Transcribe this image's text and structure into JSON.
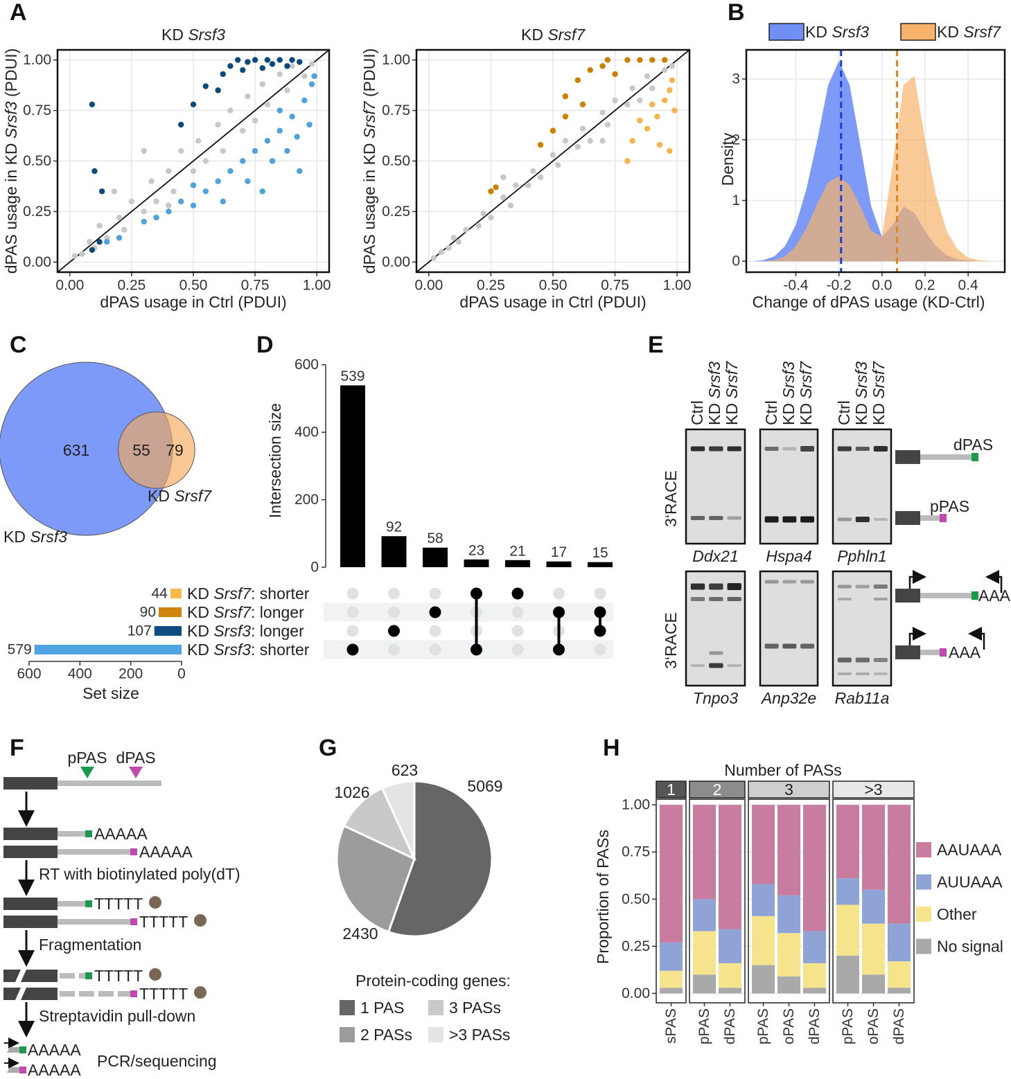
{
  "panel_labels": [
    "A",
    "B",
    "C",
    "D",
    "E",
    "F",
    "G",
    "H"
  ],
  "chart_data": [
    {
      "type": "scatter",
      "title": "KD Srsf3",
      "xlabel": "dPAS usage in Ctrl (PDUI)",
      "ylabel": "dPAS usage in KD Srsf3 (PDUI)",
      "xlim": [
        -0.05,
        1.05
      ],
      "ylim": [
        -0.05,
        1.05
      ],
      "xticks": [
        {
          "value": 0,
          "label": "0.00"
        },
        0.25,
        {
          "value": 0.5,
          "label": "0.50"
        },
        0.75,
        {
          "value": 1,
          "label": "1.00"
        }
      ],
      "yticks": [
        {
          "value": 0,
          "label": "0.00"
        },
        0.25,
        {
          "value": 0.5,
          "label": "0.50"
        },
        0.75,
        {
          "value": 1,
          "label": "1.00"
        }
      ],
      "grid": true,
      "diagonal": true,
      "series": [
        {
          "color": "#c8c8c8",
          "x": [
            0.02,
            0.05,
            0.08,
            0.1,
            0.12,
            0.15,
            0.2,
            0.22,
            0.25,
            0.3,
            0.33,
            0.35,
            0.4,
            0.42,
            0.45,
            0.5,
            0.52,
            0.55,
            0.6,
            0.62,
            0.65,
            0.7,
            0.72,
            0.75,
            0.78,
            0.8,
            0.85,
            0.88,
            0.9,
            0.95,
            0.98,
            0.18,
            0.3,
            0.6,
            0.4
          ],
          "y": [
            0.03,
            0.04,
            0.1,
            0.07,
            0.18,
            0.12,
            0.22,
            0.16,
            0.3,
            0.25,
            0.4,
            0.3,
            0.45,
            0.35,
            0.55,
            0.45,
            0.6,
            0.5,
            0.68,
            0.55,
            0.75,
            0.65,
            0.82,
            0.7,
            0.88,
            0.78,
            0.93,
            0.85,
            0.97,
            0.92,
            0.98,
            0.35,
            0.55,
            0.85,
            0.28
          ]
        },
        {
          "color": "#4ea2de",
          "x": [
            0.15,
            0.2,
            0.3,
            0.35,
            0.4,
            0.45,
            0.5,
            0.5,
            0.55,
            0.6,
            0.62,
            0.65,
            0.7,
            0.72,
            0.75,
            0.8,
            0.82,
            0.85,
            0.88,
            0.9,
            0.92,
            0.95,
            0.97,
            0.98,
            0.93,
            0.78,
            0.85,
            0.99
          ],
          "y": [
            0.1,
            0.12,
            0.2,
            0.22,
            0.25,
            0.3,
            0.28,
            0.38,
            0.35,
            0.4,
            0.3,
            0.45,
            0.5,
            0.4,
            0.55,
            0.6,
            0.5,
            0.65,
            0.55,
            0.72,
            0.62,
            0.8,
            0.68,
            0.88,
            0.45,
            0.35,
            0.75,
            0.92
          ]
        },
        {
          "color": "#0c4a7c",
          "x": [
            0.09,
            0.1,
            0.12,
            0.09,
            0.13,
            0.55,
            0.6,
            0.62,
            0.65,
            0.68,
            0.7,
            0.72,
            0.75,
            0.78,
            0.8,
            0.82,
            0.85,
            0.88,
            0.9,
            0.93,
            0.5,
            0.45
          ],
          "y": [
            0.78,
            0.45,
            0.1,
            0.06,
            0.35,
            0.87,
            0.85,
            0.93,
            0.97,
            1.0,
            0.95,
            0.99,
            1.0,
            0.96,
            1.0,
            0.98,
            1.0,
            0.97,
            1.0,
            0.99,
            0.78,
            0.68
          ]
        }
      ]
    },
    {
      "type": "scatter",
      "title": "KD Srsf7",
      "xlabel": "dPAS usage in Ctrl (PDUI)",
      "ylabel": "dPAS usage in KD Srsf7 (PDUI)",
      "xlim": [
        -0.05,
        1.05
      ],
      "ylim": [
        -0.05,
        1.05
      ],
      "xticks": [
        {
          "value": 0,
          "label": "0.00"
        },
        0.25,
        {
          "value": 0.5,
          "label": "0.50"
        },
        0.75,
        {
          "value": 1,
          "label": "1.00"
        }
      ],
      "yticks": [
        {
          "value": 0,
          "label": "0.00"
        },
        0.25,
        {
          "value": 0.5,
          "label": "0.50"
        },
        0.75,
        {
          "value": 1,
          "label": "1.00"
        }
      ],
      "grid": true,
      "diagonal": true,
      "series": [
        {
          "color": "#c8c8c8",
          "x": [
            0.02,
            0.05,
            0.08,
            0.1,
            0.12,
            0.15,
            0.2,
            0.22,
            0.25,
            0.3,
            0.33,
            0.35,
            0.4,
            0.42,
            0.45,
            0.5,
            0.52,
            0.55,
            0.6,
            0.62,
            0.65,
            0.7,
            0.72,
            0.75,
            0.8,
            0.82,
            0.85,
            0.88,
            0.9,
            0.95,
            0.98,
            0.3,
            0.5,
            0.7
          ],
          "y": [
            0.02,
            0.05,
            0.07,
            0.12,
            0.1,
            0.16,
            0.18,
            0.24,
            0.22,
            0.32,
            0.28,
            0.38,
            0.38,
            0.45,
            0.42,
            0.53,
            0.48,
            0.6,
            0.57,
            0.66,
            0.6,
            0.74,
            0.68,
            0.8,
            0.78,
            0.86,
            0.8,
            0.92,
            0.86,
            0.95,
            0.97,
            0.42,
            0.65,
            0.6
          ]
        },
        {
          "color": "#cc8000",
          "x": [
            0.25,
            0.27,
            0.45,
            0.5,
            0.55,
            0.6,
            0.62,
            0.65,
            0.7,
            0.72,
            0.75,
            0.8,
            0.85,
            0.9,
            0.95,
            0.55
          ],
          "y": [
            0.35,
            0.37,
            0.58,
            0.65,
            0.82,
            0.9,
            0.78,
            0.95,
            0.97,
            1.0,
            0.93,
            1.0,
            1.0,
            1.0,
            1.0,
            0.72
          ]
        },
        {
          "color": "#f7b44c",
          "x": [
            0.82,
            0.85,
            0.88,
            0.9,
            0.92,
            0.95,
            0.97,
            0.97,
            0.93,
            0.98,
            0.8,
            0.99
          ],
          "y": [
            0.6,
            0.7,
            0.66,
            0.78,
            0.72,
            0.8,
            0.85,
            0.55,
            0.58,
            0.9,
            0.5,
            0.75
          ]
        }
      ]
    },
    {
      "type": "density",
      "xlabel": "Change of dPAS usage (KD-Ctrl)",
      "ylabel": "Density",
      "xlim": [
        -0.63,
        0.57
      ],
      "ylim": [
        -0.18,
        3.48
      ],
      "xticks": [
        -0.4,
        -0.2,
        {
          "value": 0,
          "label": "0.0"
        },
        0.2,
        0.4
      ],
      "yticks": [
        0,
        1,
        2,
        3
      ],
      "grid": true,
      "legend": "top",
      "x": [
        -0.6,
        -0.55,
        -0.5,
        -0.45,
        -0.4,
        -0.35,
        -0.3,
        -0.25,
        -0.2,
        -0.15,
        -0.1,
        -0.05,
        0,
        0.05,
        0.1,
        0.15,
        0.2,
        0.25,
        0.3,
        0.35,
        0.4,
        0.45,
        0.5
      ],
      "series": [
        {
          "name": "KD Srsf3",
          "color": "#6f8ff5",
          "mean": -0.19,
          "mean_color": "#1a3fd8",
          "values": [
            0,
            0.02,
            0.08,
            0.25,
            0.6,
            1.2,
            2.0,
            2.9,
            3.3,
            2.9,
            1.9,
            0.9,
            0.4,
            0.6,
            0.9,
            0.8,
            0.5,
            0.25,
            0.1,
            0.03,
            0.01,
            0,
            0
          ]
        },
        {
          "name": "KD Srsf7",
          "color": "#f7b26b",
          "mean": 0.07,
          "mean_color": "#e0841a",
          "values": [
            0,
            0,
            0.02,
            0.08,
            0.25,
            0.55,
            0.95,
            1.3,
            1.4,
            1.25,
            0.9,
            0.5,
            0.4,
            1.6,
            2.9,
            3.05,
            2.0,
            1.1,
            0.5,
            0.2,
            0.06,
            0.02,
            0
          ]
        }
      ]
    },
    {
      "type": "venn",
      "values": [
        631,
        55,
        79
      ],
      "sets": [
        {
          "name": "KD Srsf3",
          "color": "#7d9af8"
        },
        {
          "name": "KD Srsf7",
          "color": "#f5a95a"
        }
      ]
    },
    {
      "type": "upset",
      "values": [
        539,
        92,
        58,
        23,
        21,
        17,
        15
      ],
      "color": "#000000",
      "ylim": [
        0,
        620
      ],
      "yticks": [
        0,
        200,
        400,
        600
      ],
      "ylabel": "Intersection size",
      "sets": [
        {
          "name": "KD Srsf7: shorter",
          "size": 44,
          "color": "#f6b84a"
        },
        {
          "name": "KD Srsf7: longer",
          "size": 90,
          "color": "#cf860f"
        },
        {
          "name": "KD Srsf3: longer",
          "size": 107,
          "color": "#0f4c81"
        },
        {
          "name": "KD Srsf3: shorter",
          "size": 579,
          "color": "#4fa3e0"
        }
      ],
      "membership": [
        [
          3
        ],
        [
          2
        ],
        [
          1
        ],
        [
          0,
          3
        ],
        [
          0
        ],
        [
          1,
          3
        ],
        [
          1,
          2
        ]
      ],
      "set_xlim": [
        600,
        0
      ],
      "set_xticks": [
        600,
        400,
        200,
        0
      ],
      "set_xlabel": "Set size"
    },
    {
      "type": "pie",
      "values": [
        5069,
        2430,
        1026,
        623
      ],
      "legend_title": "Protein-coding genes:",
      "names": [
        "1 PAS",
        "2 PASs",
        "3 PASs",
        ">3 PASs"
      ],
      "colors": [
        "#666666",
        "#9c9c9c",
        "#c9c9c9",
        "#e4e4e4"
      ]
    },
    {
      "type": "bar",
      "stacked": true,
      "facet_title": "Number of PASs",
      "ylabel": "Proportion of PASs",
      "ylim": [
        -0.05,
        1.03
      ],
      "yticks": [
        {
          "value": 0,
          "label": "0.00"
        },
        0.25,
        {
          "value": 0.5,
          "label": "0.50"
        },
        0.75,
        {
          "value": 1,
          "label": "1.00"
        }
      ],
      "grid": true,
      "legend": "right",
      "facets": [
        {
          "label": "1",
          "color": "#555555",
          "categories": [
            "sPAS"
          ]
        },
        {
          "label": "2",
          "color": "#8c8c8c",
          "categories": [
            "pPAS",
            "dPAS"
          ]
        },
        {
          "label": "3",
          "color": "#cfcfcf",
          "categories": [
            "pPAS",
            "oPAS",
            "dPAS"
          ]
        },
        {
          "label": ">3",
          "color": "#e8e8e8",
          "categories": [
            "pPAS",
            "oPAS",
            "dPAS"
          ]
        }
      ],
      "series": [
        {
          "name": "No signal",
          "color": "#a9a9a9",
          "values": [
            0.03,
            0.1,
            0.03,
            0.15,
            0.09,
            0.03,
            0.2,
            0.1,
            0.03
          ]
        },
        {
          "name": "Other",
          "color": "#f6e48c",
          "values": [
            0.09,
            0.23,
            0.13,
            0.26,
            0.23,
            0.13,
            0.27,
            0.27,
            0.14
          ]
        },
        {
          "name": "AUUAAA",
          "color": "#8fa3d6",
          "values": [
            0.15,
            0.17,
            0.18,
            0.17,
            0.2,
            0.17,
            0.14,
            0.18,
            0.2
          ]
        },
        {
          "name": "AAUAAA",
          "color": "#c87ca0",
          "values": [
            0.73,
            0.5,
            0.66,
            0.42,
            0.48,
            0.67,
            0.39,
            0.45,
            0.63
          ]
        }
      ]
    }
  ],
  "gel": {
    "lanes": [
      "Ctrl",
      "KD Srsf3",
      "KD Srsf7"
    ],
    "method": "3‘RACE",
    "genes": [
      "Ddx21",
      "Hspa4",
      "Pphln1",
      "Tnpo3",
      "Anp32e",
      "Rab11a"
    ],
    "isoforms": [
      "dPAS",
      "pPAS"
    ],
    "tail": "AAA"
  },
  "workflow": {
    "sites": [
      "pPAS",
      "dPAS"
    ],
    "tail": "AAAAA",
    "primer": "TTTTT",
    "steps": [
      "RT with biotinylated poly(dT)",
      "Fragmentation",
      "Streptavidin pull-down",
      "PCR/sequencing"
    ]
  }
}
